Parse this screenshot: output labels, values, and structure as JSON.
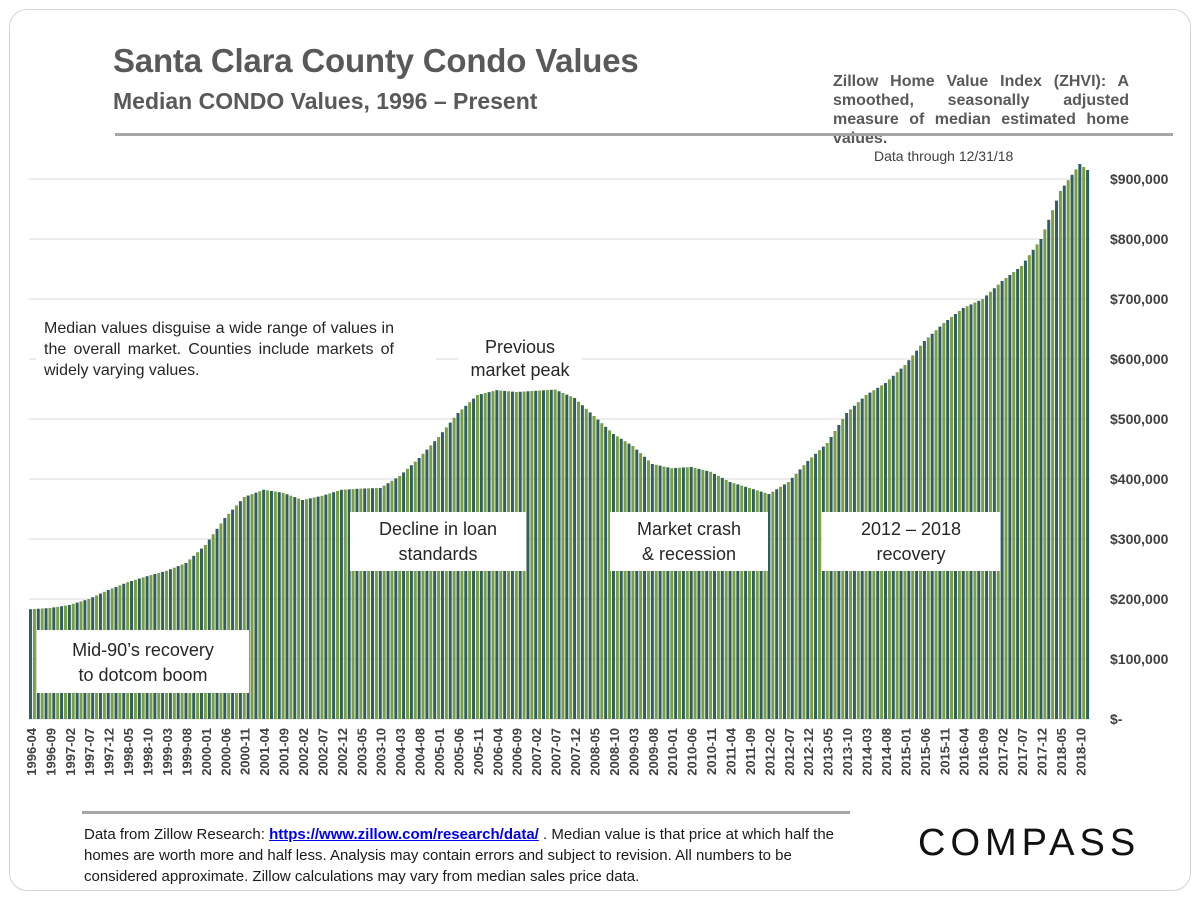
{
  "header": {
    "title": "Santa Clara County Condo Values",
    "subtitle": "Median CONDO Values, 1996 – Present",
    "zhvi_note": "Zillow Home Value Index (ZHVI): A smoothed, seasonally adjusted measure of median estimated home values."
  },
  "footer": {
    "source_prefix": "Data from Zillow Research:",
    "source_link": "https://www.zillow.com/research/data/",
    "source_rest": ". Median value is that price at which half the homes are worth more and half less. Analysis may contain errors and subject to revision. All numbers to be considered approximate. Zillow calculations may vary from median sales price data."
  },
  "brand": {
    "logo_text": "COMPASS"
  },
  "colors": {
    "bar_a": "#2e5f63",
    "bar_b": "#7a9e40",
    "grid": "#d9d9d9",
    "text": "#404040"
  },
  "chart_data": {
    "type": "bar",
    "x_start": "1996-04",
    "x_end": "2018-12",
    "y_unit": "USD",
    "ylim": [
      0,
      950000
    ],
    "y_ticks": [
      0,
      100000,
      200000,
      300000,
      400000,
      500000,
      600000,
      700000,
      800000,
      900000
    ],
    "y_tick_labels": [
      "$-",
      "$100,000",
      "$200,000",
      "$300,000",
      "$400,000",
      "$500,000",
      "$600,000",
      "$700,000",
      "$800,000",
      "$900,000"
    ],
    "y_axis_position": "right",
    "grid": true,
    "x_tick_labels": [
      "1996-04",
      "1996-09",
      "1997-02",
      "1997-07",
      "1997-12",
      "1998-05",
      "1998-10",
      "1999-03",
      "1999-08",
      "2000-01",
      "2000-06",
      "2000-11",
      "2001-04",
      "2001-09",
      "2002-02",
      "2002-07",
      "2002-12",
      "2003-05",
      "2003-10",
      "2004-03",
      "2004-08",
      "2005-01",
      "2005-06",
      "2005-11",
      "2006-04",
      "2006-09",
      "2007-02",
      "2007-07",
      "2007-12",
      "2008-05",
      "2008-10",
      "2009-03",
      "2009-08",
      "2010-01",
      "2010-06",
      "2010-11",
      "2011-04",
      "2011-09",
      "2012-02",
      "2012-07",
      "2012-12",
      "2013-05",
      "2013-10",
      "2014-03",
      "2014-08",
      "2015-01",
      "2015-06",
      "2015-11",
      "2016-04",
      "2016-09",
      "2017-02",
      "2017-07",
      "2017-12",
      "2018-05",
      "2018-10"
    ],
    "anchors": [
      {
        "date": "1996-04",
        "value": 183000
      },
      {
        "date": "1996-09",
        "value": 185000
      },
      {
        "date": "1997-02",
        "value": 190000
      },
      {
        "date": "1997-07",
        "value": 200000
      },
      {
        "date": "1997-12",
        "value": 215000
      },
      {
        "date": "1998-05",
        "value": 228000
      },
      {
        "date": "1998-10",
        "value": 238000
      },
      {
        "date": "1999-03",
        "value": 247000
      },
      {
        "date": "1999-08",
        "value": 260000
      },
      {
        "date": "2000-01",
        "value": 290000
      },
      {
        "date": "2000-06",
        "value": 335000
      },
      {
        "date": "2000-11",
        "value": 370000
      },
      {
        "date": "2001-04",
        "value": 382000
      },
      {
        "date": "2001-09",
        "value": 377000
      },
      {
        "date": "2002-02",
        "value": 365000
      },
      {
        "date": "2002-07",
        "value": 372000
      },
      {
        "date": "2002-12",
        "value": 382000
      },
      {
        "date": "2003-05",
        "value": 384000
      },
      {
        "date": "2003-10",
        "value": 385000
      },
      {
        "date": "2004-03",
        "value": 405000
      },
      {
        "date": "2004-08",
        "value": 435000
      },
      {
        "date": "2005-01",
        "value": 470000
      },
      {
        "date": "2005-06",
        "value": 510000
      },
      {
        "date": "2005-11",
        "value": 540000
      },
      {
        "date": "2006-04",
        "value": 548000
      },
      {
        "date": "2006-09",
        "value": 545000
      },
      {
        "date": "2007-02",
        "value": 547000
      },
      {
        "date": "2007-07",
        "value": 549000
      },
      {
        "date": "2007-12",
        "value": 535000
      },
      {
        "date": "2008-05",
        "value": 505000
      },
      {
        "date": "2008-10",
        "value": 475000
      },
      {
        "date": "2009-03",
        "value": 455000
      },
      {
        "date": "2009-08",
        "value": 425000
      },
      {
        "date": "2010-01",
        "value": 418000
      },
      {
        "date": "2010-06",
        "value": 420000
      },
      {
        "date": "2010-11",
        "value": 412000
      },
      {
        "date": "2011-04",
        "value": 395000
      },
      {
        "date": "2011-09",
        "value": 385000
      },
      {
        "date": "2012-02",
        "value": 375000
      },
      {
        "date": "2012-07",
        "value": 395000
      },
      {
        "date": "2012-12",
        "value": 430000
      },
      {
        "date": "2013-05",
        "value": 460000
      },
      {
        "date": "2013-10",
        "value": 510000
      },
      {
        "date": "2014-03",
        "value": 540000
      },
      {
        "date": "2014-08",
        "value": 560000
      },
      {
        "date": "2015-01",
        "value": 590000
      },
      {
        "date": "2015-06",
        "value": 630000
      },
      {
        "date": "2015-11",
        "value": 660000
      },
      {
        "date": "2016-04",
        "value": 685000
      },
      {
        "date": "2016-09",
        "value": 700000
      },
      {
        "date": "2017-02",
        "value": 730000
      },
      {
        "date": "2017-07",
        "value": 755000
      },
      {
        "date": "2017-12",
        "value": 800000
      },
      {
        "date": "2018-05",
        "value": 880000
      },
      {
        "date": "2018-10",
        "value": 925000
      },
      {
        "date": "2018-12",
        "value": 915000
      }
    ],
    "annotations": {
      "data_through": "Data through  12/31/18",
      "disguise_note": "Median values disguise a wide range of values in the overall market. Counties include markets of widely varying values.",
      "previous_peak_line1": "Previous",
      "previous_peak_line2": "market peak",
      "mid90s_line1": "Mid-90’s recovery",
      "mid90s_line2": "to dotcom boom",
      "decline_line1": "Decline in loan",
      "decline_line2": "standards",
      "crash_line1": "Market crash",
      "crash_line2": "& recession",
      "recovery_line1": "2012 – 2018",
      "recovery_line2": "recovery"
    }
  }
}
